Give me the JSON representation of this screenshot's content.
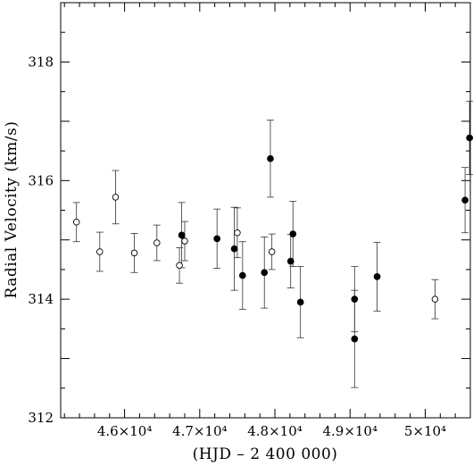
{
  "chart_data": {
    "type": "scatter",
    "xlabel": "(HJD – 2 400 000)",
    "ylabel": "Radial Velocity (km/s)",
    "xlim": [
      45150,
      50600
    ],
    "ylim": [
      312,
      319
    ],
    "x_ticks": [
      {
        "value": 46000,
        "label": "4.6×10⁴"
      },
      {
        "value": 47000,
        "label": "4.7×10⁴"
      },
      {
        "value": 48000,
        "label": "4.8×10⁴"
      },
      {
        "value": 49000,
        "label": "4.9×10⁴"
      },
      {
        "value": 50000,
        "label": "5×10⁴"
      }
    ],
    "y_ticks": [
      {
        "value": 312,
        "label": "312"
      },
      {
        "value": 314,
        "label": "314"
      },
      {
        "value": 316,
        "label": "316"
      },
      {
        "value": 318,
        "label": "318"
      }
    ],
    "grid": false,
    "series": [
      {
        "marker": "open-circle",
        "points": [
          {
            "x": 45360,
            "y": 315.3,
            "err": 0.33
          },
          {
            "x": 45670,
            "y": 314.8,
            "err": 0.33
          },
          {
            "x": 45880,
            "y": 315.72,
            "err": 0.45
          },
          {
            "x": 46130,
            "y": 314.78,
            "err": 0.33
          },
          {
            "x": 46430,
            "y": 314.95,
            "err": 0.3
          },
          {
            "x": 46730,
            "y": 314.57,
            "err": 0.3
          },
          {
            "x": 46800,
            "y": 314.98,
            "err": 0.33
          },
          {
            "x": 47500,
            "y": 315.12,
            "err": 0.42
          },
          {
            "x": 47960,
            "y": 314.8,
            "err": 0.3
          },
          {
            "x": 50130,
            "y": 314.0,
            "err": 0.33
          }
        ]
      },
      {
        "marker": "filled-circle",
        "points": [
          {
            "x": 46760,
            "y": 315.08,
            "err": 0.55
          },
          {
            "x": 47230,
            "y": 315.02,
            "err": 0.5
          },
          {
            "x": 47460,
            "y": 314.85,
            "err": 0.7
          },
          {
            "x": 47570,
            "y": 314.4,
            "err": 0.57
          },
          {
            "x": 47860,
            "y": 314.45,
            "err": 0.6
          },
          {
            "x": 47940,
            "y": 316.37,
            "err": 0.65
          },
          {
            "x": 48210,
            "y": 314.64,
            "err": 0.45
          },
          {
            "x": 48240,
            "y": 315.1,
            "err": 0.55
          },
          {
            "x": 48340,
            "y": 313.95,
            "err": 0.6
          },
          {
            "x": 49060,
            "y": 314.0,
            "err": 0.55
          },
          {
            "x": 49060,
            "y": 313.33,
            "err": 0.82
          },
          {
            "x": 49360,
            "y": 314.38,
            "err": 0.58
          },
          {
            "x": 50530,
            "y": 315.67,
            "err": 0.55
          },
          {
            "x": 50590,
            "y": 316.72,
            "err": 0.62
          }
        ]
      }
    ]
  }
}
